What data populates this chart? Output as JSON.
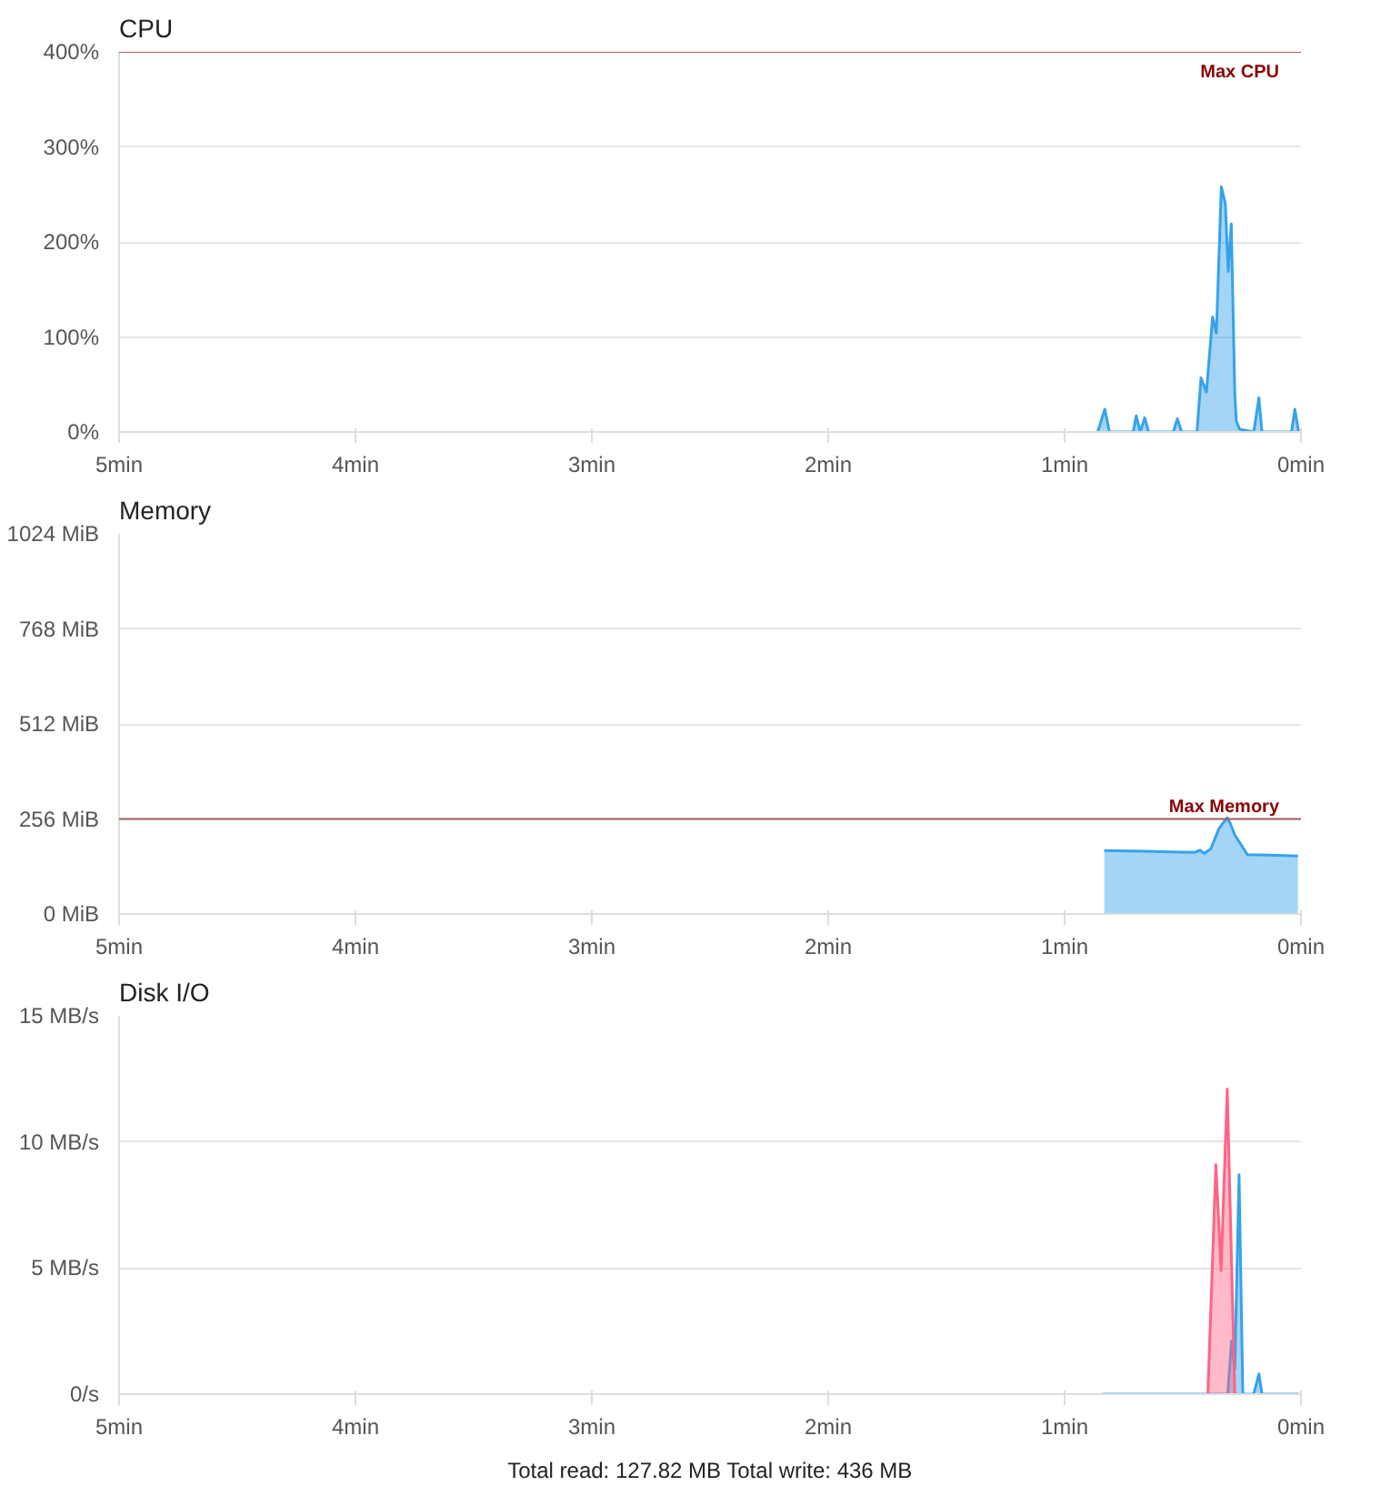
{
  "chart_data": [
    {
      "type": "area",
      "title": "CPU",
      "xlim": [
        5,
        0
      ],
      "xticks": [
        {
          "value": 5,
          "label": "5min"
        },
        {
          "value": 4,
          "label": "4min"
        },
        {
          "value": 3,
          "label": "3min"
        },
        {
          "value": 2,
          "label": "2min"
        },
        {
          "value": 1,
          "label": "1min"
        },
        {
          "value": 0,
          "label": "0min"
        }
      ],
      "ylim": [
        0,
        400
      ],
      "yticks": [
        {
          "value": 0,
          "label": "0%"
        },
        {
          "value": 100,
          "label": "100%"
        },
        {
          "value": 200,
          "label": "200%"
        },
        {
          "value": 300,
          "label": "300%"
        },
        {
          "value": 400,
          "label": "400%"
        }
      ],
      "grid": "y",
      "series": [
        {
          "color": "#36a2eb",
          "x": [
            0.86,
            0.83,
            0.81,
            0.71,
            0.697,
            0.68,
            0.661,
            0.645,
            0.54,
            0.523,
            0.505,
            0.44,
            0.423,
            0.4,
            0.374,
            0.358,
            0.337,
            0.32,
            0.308,
            0.295,
            0.28,
            0.274,
            0.26,
            0.24,
            0.2,
            0.178,
            0.165,
            0.04,
            0.026,
            0.01
          ],
          "values": [
            0,
            24,
            0,
            0,
            17,
            0,
            15,
            0,
            0,
            14,
            0,
            0,
            57,
            42,
            121,
            104,
            258,
            240,
            169,
            219,
            40,
            12,
            3,
            2,
            0,
            36,
            0,
            0,
            24,
            0
          ]
        }
      ],
      "ref_lines": [
        {
          "axis": "y",
          "value": 400,
          "label": "Max CPU",
          "color": "#a06060"
        }
      ]
    },
    {
      "type": "area",
      "title": "Memory",
      "xlim": [
        5,
        0
      ],
      "xticks": [
        {
          "value": 5,
          "label": "5min"
        },
        {
          "value": 4,
          "label": "4min"
        },
        {
          "value": 3,
          "label": "3min"
        },
        {
          "value": 2,
          "label": "2min"
        },
        {
          "value": 1,
          "label": "1min"
        },
        {
          "value": 0,
          "label": "0min"
        }
      ],
      "ylim": [
        0,
        1024
      ],
      "yticks": [
        {
          "value": 0,
          "label": "0 MiB"
        },
        {
          "value": 256,
          "label": "256 MiB"
        },
        {
          "value": 512,
          "label": "512 MiB"
        },
        {
          "value": 768,
          "label": "768 MiB"
        },
        {
          "value": 1024,
          "label": "1024 MiB"
        }
      ],
      "grid": "y",
      "series": [
        {
          "color": "#36a2eb",
          "x": [
            0.832,
            0.6,
            0.45,
            0.427,
            0.41,
            0.382,
            0.347,
            0.33,
            0.312,
            0.3,
            0.28,
            0.227,
            0.1,
            0.013
          ],
          "values": [
            171,
            168,
            166,
            172,
            163,
            175,
            230,
            245,
            259,
            245,
            213,
            160,
            158,
            156
          ]
        }
      ],
      "ref_lines": [
        {
          "axis": "y",
          "value": 256,
          "label": "Max Memory",
          "color": "#a06060"
        }
      ]
    },
    {
      "type": "area",
      "title": "Disk I/O",
      "xlim": [
        5,
        0
      ],
      "xticks": [
        {
          "value": 5,
          "label": "5min"
        },
        {
          "value": 4,
          "label": "4min"
        },
        {
          "value": 3,
          "label": "3min"
        },
        {
          "value": 2,
          "label": "2min"
        },
        {
          "value": 1,
          "label": "1min"
        },
        {
          "value": 0,
          "label": "0min"
        }
      ],
      "ylim": [
        0,
        15
      ],
      "yticks": [
        {
          "value": 0,
          "label": "0/s"
        },
        {
          "value": 5,
          "label": "5 MB/s"
        },
        {
          "value": 10,
          "label": "10 MB/s"
        },
        {
          "value": 15,
          "label": "15 MB/s"
        }
      ],
      "grid": "y",
      "series": [
        {
          "color": "#36a2eb",
          "x": [
            0.84,
            0.6,
            0.31,
            0.294,
            0.28,
            0.262,
            0.246,
            0.2,
            0.178,
            0.165,
            0.01
          ],
          "values": [
            0,
            0,
            0,
            2.1,
            1.0,
            8.7,
            0,
            0,
            0.8,
            0,
            0
          ]
        },
        {
          "color": "#ff6384",
          "x": [
            0.4,
            0.394,
            0.36,
            0.338,
            0.312,
            0.28,
            0.27
          ],
          "values": [
            0,
            0,
            9.1,
            4.9,
            12.1,
            0,
            0
          ]
        }
      ],
      "annotations": [
        "Total read: 127.82 MB Total write: 436 MB"
      ]
    }
  ]
}
